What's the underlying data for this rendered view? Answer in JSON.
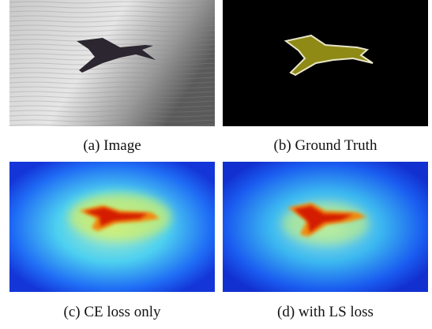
{
  "panels": [
    {
      "caption": "(a) Image"
    },
    {
      "caption": "(b) Ground Truth"
    },
    {
      "caption": "(c) CE loss only"
    },
    {
      "caption": "(d) with LS loss"
    }
  ]
}
